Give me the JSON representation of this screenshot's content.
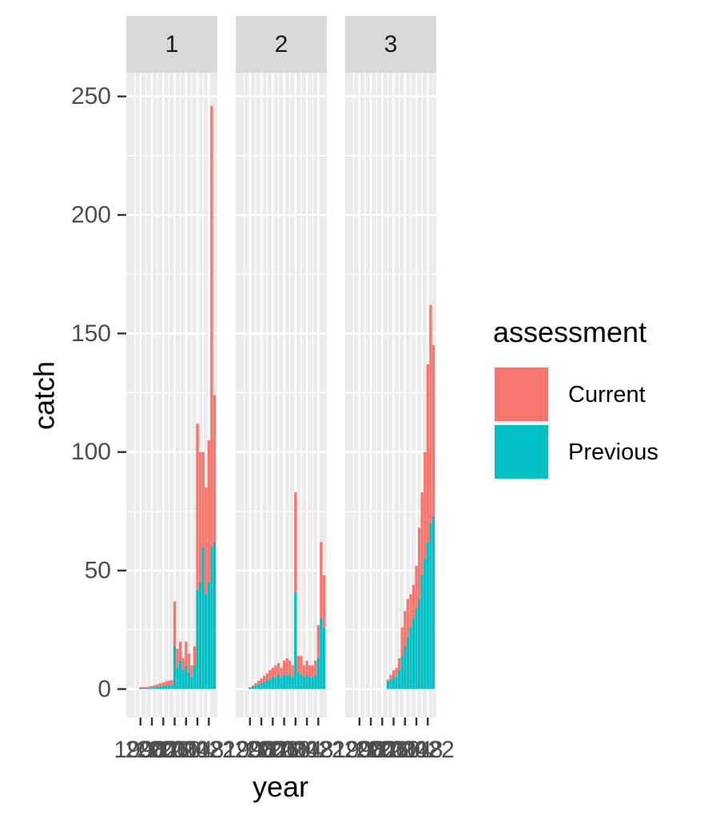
{
  "chart_data": {
    "type": "bar",
    "stacked": true,
    "facet_variable": "",
    "facets": [
      "1",
      "2",
      "3"
    ],
    "xlabel": "year",
    "ylabel": "catch",
    "ylim": [
      -12,
      260
    ],
    "yticks": [
      0,
      50,
      100,
      150,
      200,
      250
    ],
    "xlim": [
      1993,
      2025
    ],
    "xticks": [
      1998,
      2002,
      2006,
      2010,
      2014,
      2018,
      2022
    ],
    "xtick_labels": [
      "1998",
      "2002",
      "2006",
      "2010",
      "2014",
      "2018",
      "2022"
    ],
    "grid": true,
    "legend": {
      "title": "assessment",
      "position": "right",
      "entries": [
        {
          "name": "Current",
          "color": "#F8766D"
        },
        {
          "name": "Previous",
          "color": "#00BFC4"
        }
      ]
    },
    "x": [
      1998,
      1999,
      2000,
      2001,
      2002,
      2003,
      2004,
      2005,
      2006,
      2007,
      2008,
      2009,
      2010,
      2011,
      2012,
      2013,
      2014,
      2015,
      2016,
      2017,
      2018,
      2019,
      2020,
      2021,
      2022,
      2023,
      2024
    ],
    "panels": [
      {
        "facet": "1",
        "series": [
          {
            "name": "Previous",
            "values": [
              0.5,
              0.5,
              0.5,
              0.6,
              0.7,
              0.8,
              1,
              1.2,
              1.3,
              1.5,
              1.6,
              1.8,
              18,
              9,
              12,
              8,
              10,
              7,
              5,
              10,
              42,
              45,
              60,
              40,
              45,
              60,
              62
            ]
          },
          {
            "name": "Current",
            "values": [
              0.3,
              0.3,
              0.4,
              0.5,
              0.6,
              0.8,
              1,
              1.3,
              1.5,
              1.8,
              2,
              2,
              19,
              8,
              8,
              5,
              10,
              8,
              5,
              8,
              70,
              55,
              40,
              45,
              60,
              186,
              62
            ]
          }
        ]
      },
      {
        "facet": "2",
        "series": [
          {
            "name": "Previous",
            "values": [
              0.5,
              1,
              1.5,
              2,
              2.5,
              3,
              3.5,
              4,
              5,
              5,
              6,
              5,
              6,
              6,
              6,
              5,
              41,
              7,
              6,
              5,
              6,
              5,
              5,
              6,
              13,
              30,
              26
            ]
          },
          {
            "name": "Current",
            "values": [
              0.3,
              0.5,
              1,
              1.5,
              2,
              2.5,
              3,
              4,
              4,
              5,
              5,
              4,
              6,
              7,
              6,
              5,
              42,
              7,
              8,
              5,
              6,
              5,
              5,
              6,
              14,
              32,
              22
            ]
          }
        ]
      },
      {
        "facet": "3",
        "series": [
          {
            "name": "Previous",
            "values": [
              0,
              0,
              0,
              0,
              0,
              0,
              0,
              0,
              0,
              0,
              3,
              4,
              5,
              5,
              8,
              14,
              18,
              22,
              26,
              30,
              34,
              38,
              48,
              55,
              62,
              70,
              73
            ]
          },
          {
            "name": "Current",
            "values": [
              0,
              0,
              0,
              0,
              0,
              0,
              0,
              0,
              0,
              0,
              1,
              2,
              3,
              4,
              5,
              12,
              15,
              16,
              14,
              14,
              18,
              30,
              35,
              45,
              75,
              92,
              72
            ]
          }
        ]
      }
    ]
  }
}
